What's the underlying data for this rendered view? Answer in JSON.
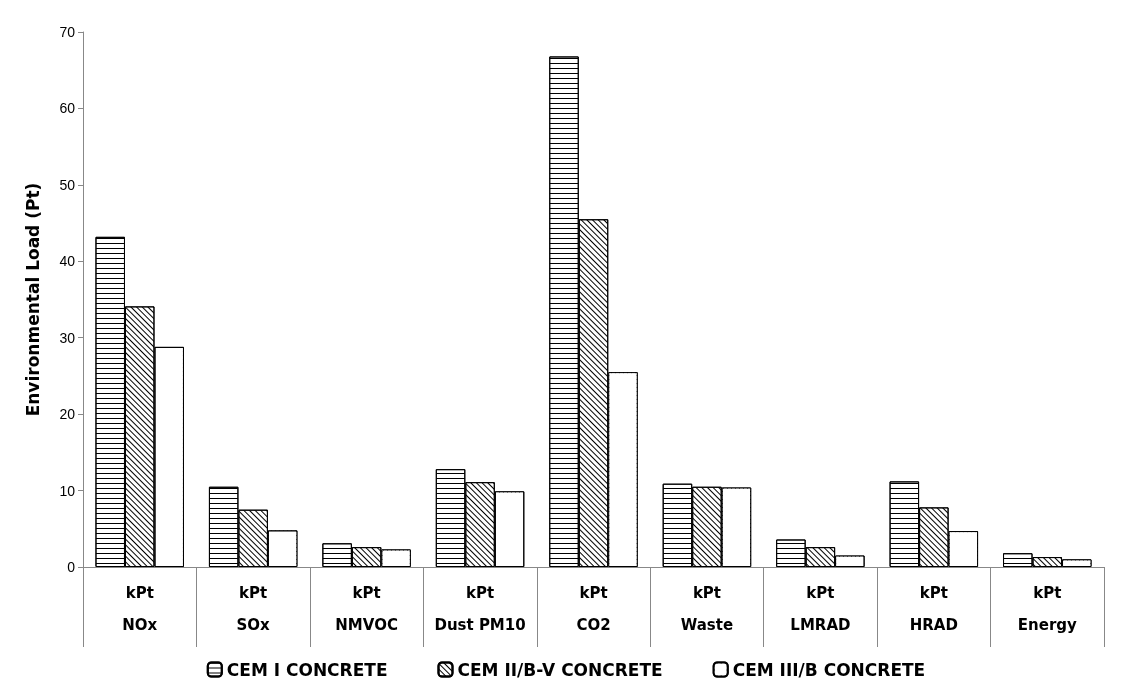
{
  "chart_data": {
    "type": "bar",
    "ylabel": "Environmental Load (Pt)",
    "categories": [
      "kPt\n\nNOx",
      "kPt\n\nSOx",
      "kPt\n\nNMVOC",
      "kPt\n\nDust PM10",
      "kPt\n\nCO2",
      "kPt\n\nWaste",
      "kPt\n\nLMRAD",
      "kPt\n\nHRAD",
      "kPt\n\nEnergy"
    ],
    "series": [
      {
        "name": "CEM I CONCRETE",
        "color": "#000000",
        "values": [
          43.2,
          10.5,
          3.1,
          12.8,
          66.8,
          10.9,
          3.6,
          11.2,
          1.8
        ]
      },
      {
        "name": "CEM II/B-V CONCRETE",
        "color": "#000000",
        "values": [
          34.1,
          7.5,
          2.6,
          11.1,
          45.5,
          10.5,
          2.6,
          7.8,
          1.3
        ]
      },
      {
        "name": "CEM III/B CONCRETE",
        "color": "#000000",
        "values": [
          28.8,
          4.8,
          2.3,
          9.9,
          25.5,
          10.4,
          1.5,
          4.7,
          1.0
        ]
      }
    ],
    "ylim": [
      0,
      70
    ],
    "yticks": [
      0,
      10,
      20,
      30,
      40,
      50,
      60,
      70
    ],
    "grid": false,
    "legend": "bottom"
  }
}
